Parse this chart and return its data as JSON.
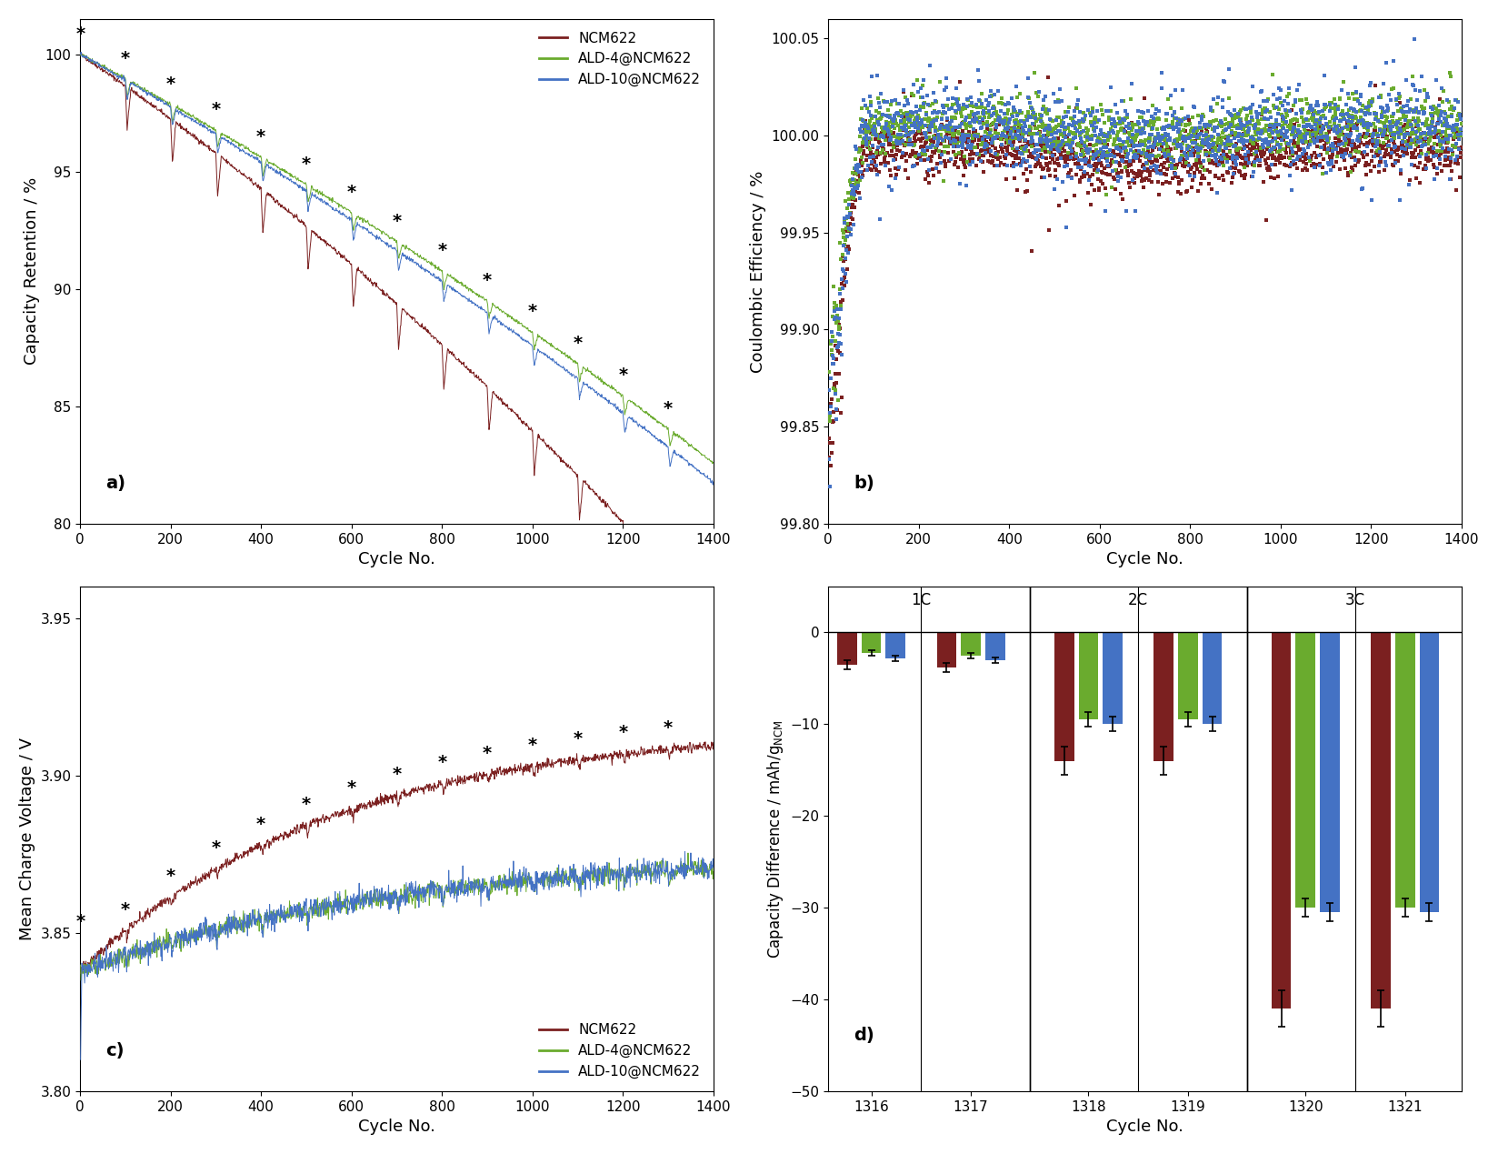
{
  "colors": {
    "NCM622": "#7B2020",
    "ALD4": "#6AAB2E",
    "ALD10": "#4472C4"
  },
  "panel_a": {
    "ylabel": "Capacity Retention / %",
    "xlabel": "Cycle No.",
    "ylim": [
      80,
      101.5
    ],
    "xlim": [
      0,
      1400
    ],
    "yticks": [
      80,
      85,
      90,
      95,
      100
    ],
    "xticks": [
      0,
      200,
      400,
      600,
      800,
      1000,
      1200,
      1400
    ],
    "label": "a)"
  },
  "panel_b": {
    "ylabel": "Coulombic Efficiency / %",
    "xlabel": "Cycle No.",
    "ylim": [
      99.8,
      100.06
    ],
    "xlim": [
      0,
      1400
    ],
    "yticks": [
      99.8,
      99.85,
      99.9,
      99.95,
      100.0,
      100.05
    ],
    "xticks": [
      0,
      200,
      400,
      600,
      800,
      1000,
      1200,
      1400
    ],
    "label": "b)"
  },
  "panel_c": {
    "ylabel": "Mean Charge Voltage / V",
    "xlabel": "Cycle No.",
    "ylim": [
      3.8,
      3.96
    ],
    "xlim": [
      0,
      1400
    ],
    "yticks": [
      3.8,
      3.85,
      3.9,
      3.95
    ],
    "xticks": [
      0,
      200,
      400,
      600,
      800,
      1000,
      1200,
      1400
    ],
    "label": "c)"
  },
  "panel_d": {
    "ylabel": "Capacity Difference / mAh/g",
    "ylabel_sub": "NCM",
    "xlabel": "Cycle No.",
    "ylim": [
      -50,
      5
    ],
    "yticks": [
      0,
      -10,
      -20,
      -30,
      -40,
      -50
    ],
    "label": "d)",
    "categories": [
      "1316",
      "1317",
      "1318",
      "1319",
      "1320",
      "1321"
    ],
    "rate_labels": [
      "1C",
      "2C",
      "3C"
    ],
    "ncm622_vals": [
      -3.5,
      -3.8,
      -14.0,
      -14.0,
      -41.0,
      -41.0
    ],
    "ald4_vals": [
      -2.2,
      -2.5,
      -9.5,
      -9.5,
      -30.0,
      -30.0
    ],
    "ald10_vals": [
      -2.8,
      -3.0,
      -10.0,
      -10.0,
      -30.5,
      -30.5
    ],
    "ncm622_err": [
      0.5,
      0.5,
      1.5,
      1.5,
      2.0,
      2.0
    ],
    "ald4_err": [
      0.3,
      0.3,
      0.8,
      0.8,
      1.0,
      1.0
    ],
    "ald10_err": [
      0.3,
      0.3,
      0.8,
      0.8,
      1.0,
      1.0
    ]
  },
  "legend_labels": [
    "NCM622",
    "ALD-4@NCM622",
    "ALD-10@NCM622"
  ]
}
